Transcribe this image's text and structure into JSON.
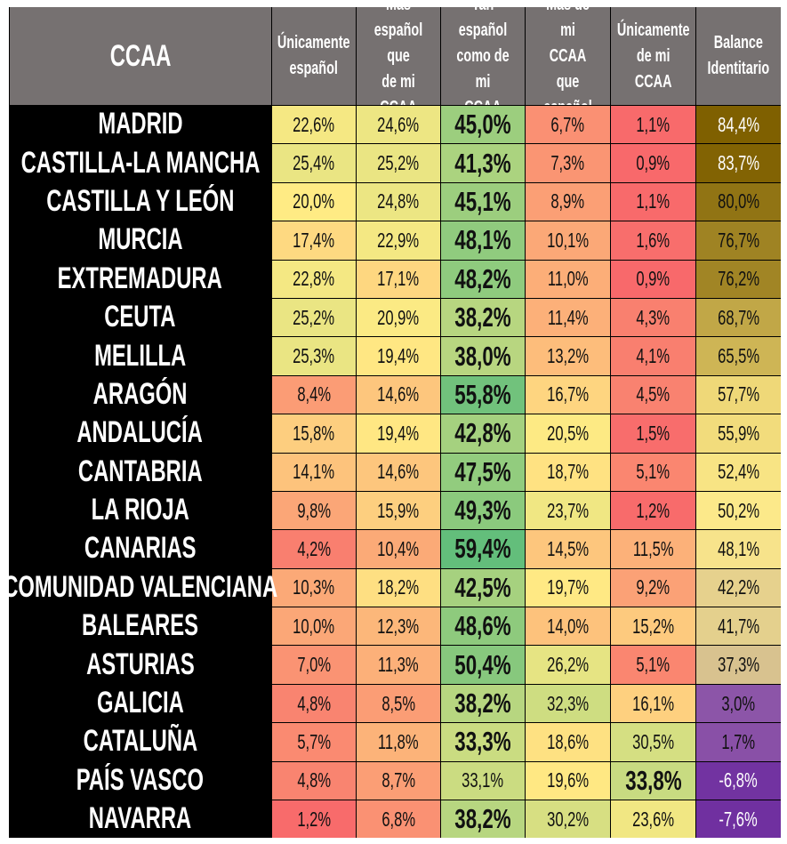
{
  "chart_data": {
    "type": "table",
    "columns": [
      "CCAA",
      "Únicamente\nespañol",
      "Más\nespañol que\nde mi CCAA",
      "Tan español\ncomo de mi\nCCAA",
      "Más de mi\nCCAA que\nespañol",
      "Únicamente\nde mi CCAA",
      "Balance\nIdentitario"
    ],
    "rows": [
      {
        "ccaa": "MADRID",
        "values": [
          "22,6%",
          "24,6%",
          "45,0%",
          "6,7%",
          "1,1%",
          "84,4%"
        ]
      },
      {
        "ccaa": "CASTILLA-LA MANCHA",
        "values": [
          "25,4%",
          "25,2%",
          "41,3%",
          "7,3%",
          "0,9%",
          "83,7%"
        ]
      },
      {
        "ccaa": "CASTILLA Y LEÓN",
        "values": [
          "20,0%",
          "24,8%",
          "45,1%",
          "8,9%",
          "1,1%",
          "80,0%"
        ]
      },
      {
        "ccaa": "MURCIA",
        "values": [
          "17,4%",
          "22,9%",
          "48,1%",
          "10,1%",
          "1,6%",
          "76,7%"
        ]
      },
      {
        "ccaa": "EXTREMADURA",
        "values": [
          "22,8%",
          "17,1%",
          "48,2%",
          "11,0%",
          "0,9%",
          "76,2%"
        ]
      },
      {
        "ccaa": "CEUTA",
        "values": [
          "25,2%",
          "20,9%",
          "38,2%",
          "11,4%",
          "4,3%",
          "68,7%"
        ]
      },
      {
        "ccaa": "MELILLA",
        "values": [
          "25,3%",
          "19,4%",
          "38,0%",
          "13,2%",
          "4,1%",
          "65,5%"
        ]
      },
      {
        "ccaa": "ARAGÓN",
        "values": [
          "8,4%",
          "14,6%",
          "55,8%",
          "16,7%",
          "4,5%",
          "57,7%"
        ]
      },
      {
        "ccaa": "ANDALUCÍA",
        "values": [
          "15,8%",
          "19,4%",
          "42,8%",
          "20,5%",
          "1,5%",
          "55,9%"
        ]
      },
      {
        "ccaa": "CANTABRIA",
        "values": [
          "14,1%",
          "14,6%",
          "47,5%",
          "18,7%",
          "5,1%",
          "52,4%"
        ]
      },
      {
        "ccaa": "LA RIOJA",
        "values": [
          "9,8%",
          "15,9%",
          "49,3%",
          "23,7%",
          "1,2%",
          "50,2%"
        ]
      },
      {
        "ccaa": "CANARIAS",
        "values": [
          "4,2%",
          "10,4%",
          "59,4%",
          "14,5%",
          "11,5%",
          "48,1%"
        ]
      },
      {
        "ccaa": "COMUNIDAD VALENCIANA",
        "values": [
          "10,3%",
          "18,2%",
          "42,5%",
          "19,7%",
          "9,2%",
          "42,2%"
        ]
      },
      {
        "ccaa": "BALEARES",
        "values": [
          "10,0%",
          "12,3%",
          "48,6%",
          "14,0%",
          "15,2%",
          "41,7%"
        ]
      },
      {
        "ccaa": "ASTURIAS",
        "values": [
          "7,0%",
          "11,3%",
          "50,4%",
          "26,2%",
          "5,1%",
          "37,3%"
        ]
      },
      {
        "ccaa": "GALICIA",
        "values": [
          "4,8%",
          "8,5%",
          "38,2%",
          "32,3%",
          "16,1%",
          "3,0%"
        ]
      },
      {
        "ccaa": "CATALUÑA",
        "values": [
          "5,7%",
          "11,8%",
          "33,3%",
          "18,6%",
          "30,5%",
          "1,7%"
        ]
      },
      {
        "ccaa": "PAÍS VASCO",
        "values": [
          "4,8%",
          "8,7%",
          "33,1%",
          "19,6%",
          "33,8%",
          "-6,8%"
        ]
      },
      {
        "ccaa": "NAVARRA",
        "values": [
          "1,2%",
          "6,8%",
          "38,2%",
          "30,2%",
          "23,6%",
          "-7,6%"
        ]
      }
    ],
    "color_scales": {
      "share_columns": {
        "low": "#f8696b",
        "mid": "#ffeb84",
        "high": "#63be7b"
      },
      "balance_column": {
        "high": "#7f6000",
        "mid": "#fce98a",
        "low": "#7030a0"
      }
    },
    "header_bg": "#767171",
    "name_bg": "#000000"
  }
}
